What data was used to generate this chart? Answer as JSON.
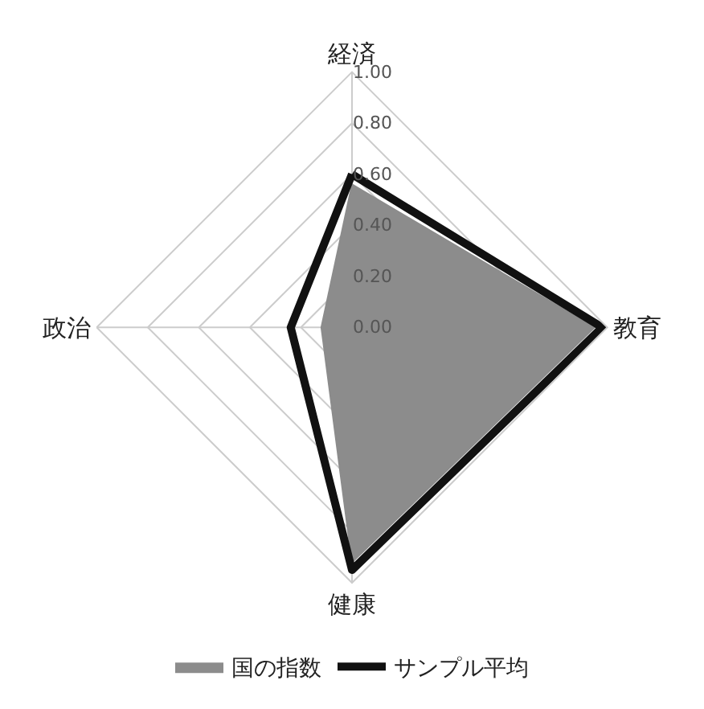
{
  "chart_data": {
    "type": "radar",
    "categories": [
      "経済",
      "教育",
      "健康",
      "政治"
    ],
    "series": [
      {
        "name": "国の指数",
        "color": "#8c8c8c",
        "type": "area",
        "values": [
          0.56,
          0.95,
          0.92,
          0.12
        ]
      },
      {
        "name": "サンプル平均",
        "color": "#111111",
        "values": [
          0.6,
          0.98,
          0.95,
          0.24
        ]
      }
    ],
    "ylim": [
      0,
      1
    ],
    "yticks": [
      {
        "value": 0,
        "label": "0.00"
      },
      {
        "value": 0.2,
        "label": "0.20"
      },
      {
        "value": 0.4,
        "label": "0.40"
      },
      {
        "value": 0.6,
        "label": "0.60"
      },
      {
        "value": 0.8,
        "label": "0.80"
      },
      {
        "value": 1,
        "label": "1.00"
      }
    ],
    "grid": true,
    "legend": "bottom"
  }
}
